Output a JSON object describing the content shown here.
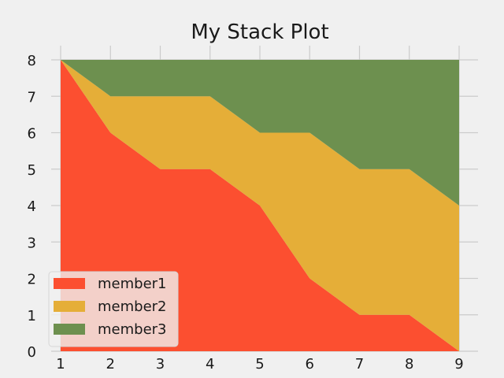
{
  "chart_data": {
    "type": "area",
    "stacked": true,
    "title": "My Stack Plot",
    "xlabel": "",
    "ylabel": "",
    "x": [
      1,
      2,
      3,
      4,
      5,
      6,
      7,
      8,
      9
    ],
    "xlim": [
      1,
      9
    ],
    "ylim": [
      0,
      8
    ],
    "xticks": [
      1,
      2,
      3,
      4,
      5,
      6,
      7,
      8,
      9
    ],
    "yticks": [
      0,
      1,
      2,
      3,
      4,
      5,
      6,
      7,
      8
    ],
    "grid": true,
    "legend_position": "lower-left",
    "series": [
      {
        "name": "member1",
        "color": "#fc4f30",
        "values": [
          8,
          6,
          5,
          5,
          4,
          2,
          1,
          1,
          0
        ]
      },
      {
        "name": "member2",
        "color": "#e5ae38",
        "values": [
          0,
          1,
          2,
          2,
          2,
          4,
          4,
          4,
          4
        ]
      },
      {
        "name": "member3",
        "color": "#6d904f",
        "values": [
          0,
          1,
          1,
          1,
          2,
          2,
          3,
          3,
          4
        ]
      }
    ]
  }
}
